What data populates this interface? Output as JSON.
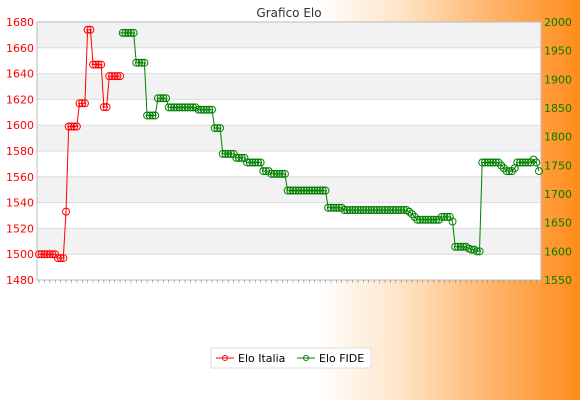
{
  "chart_data": {
    "type": "line",
    "title": "Grafico Elo",
    "legend_position": "bottom",
    "grid": true,
    "x_label_visible": false,
    "series": [
      {
        "name": "Elo Italia",
        "axis": "left",
        "color": "#ff0000",
        "ylim": [
          1480,
          1680
        ],
        "ticks": [
          1480,
          1500,
          1520,
          1540,
          1560,
          1580,
          1600,
          1620,
          1640,
          1660,
          1680
        ],
        "values": [
          1500,
          1500,
          1500,
          1500,
          1500,
          1500,
          1500,
          1497,
          1497,
          1497,
          1533,
          1599,
          1599,
          1599,
          1599,
          1617,
          1617,
          1617,
          1674,
          1674,
          1647,
          1647,
          1647,
          1647,
          1614,
          1614,
          1638,
          1638,
          1638,
          1638,
          1638
        ]
      },
      {
        "name": "Elo FIDE",
        "axis": "right",
        "color": "#008000",
        "ylim": [
          1550,
          2000
        ],
        "ticks": [
          1550,
          1600,
          1650,
          1700,
          1750,
          1800,
          1850,
          1900,
          1950,
          2000
        ],
        "start_index": 31,
        "values": [
          1981,
          1981,
          1981,
          1981,
          1981,
          1929,
          1929,
          1929,
          1929,
          1837,
          1837,
          1837,
          1837,
          1867,
          1867,
          1867,
          1867,
          1851,
          1851,
          1851,
          1851,
          1851,
          1851,
          1851,
          1851,
          1851,
          1851,
          1851,
          1847,
          1847,
          1847,
          1847,
          1847,
          1847,
          1815,
          1815,
          1815,
          1770,
          1770,
          1770,
          1770,
          1770,
          1763,
          1763,
          1763,
          1763,
          1755,
          1755,
          1755,
          1755,
          1755,
          1755,
          1740,
          1740,
          1740,
          1735,
          1735,
          1735,
          1735,
          1735,
          1735,
          1706,
          1706,
          1706,
          1706,
          1706,
          1706,
          1706,
          1706,
          1706,
          1706,
          1706,
          1706,
          1706,
          1706,
          1706,
          1676,
          1676,
          1676,
          1676,
          1676,
          1676,
          1672,
          1672,
          1672,
          1672,
          1672,
          1672,
          1672,
          1672,
          1672,
          1672,
          1672,
          1672,
          1672,
          1672,
          1672,
          1672,
          1672,
          1672,
          1672,
          1672,
          1672,
          1672,
          1672,
          1672,
          1669,
          1665,
          1660,
          1655,
          1655,
          1655,
          1655,
          1655,
          1655,
          1655,
          1655,
          1655,
          1660,
          1660,
          1660,
          1660,
          1652,
          1608,
          1608,
          1608,
          1608,
          1608,
          1605,
          1603,
          1603,
          1600,
          1600,
          1755,
          1755,
          1755,
          1755,
          1755,
          1755,
          1755,
          1750,
          1745,
          1740,
          1740,
          1740,
          1745,
          1755,
          1755,
          1755,
          1755,
          1755,
          1755,
          1760,
          1755,
          1740
        ]
      }
    ]
  }
}
